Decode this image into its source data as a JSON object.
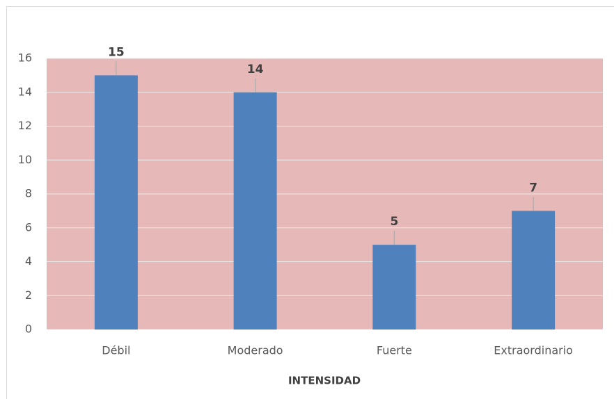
{
  "chart_data": {
    "type": "bar",
    "x_label": "INTENSIDAD",
    "categories": [
      "Débil",
      "Moderado",
      "Fuerte",
      "Extraordinario"
    ],
    "values": [
      15,
      14,
      5,
      7
    ],
    "color": "#4f81bd",
    "plot_background": "#e6b9b8",
    "ylim": [
      0,
      16
    ],
    "yticks": [
      0,
      2,
      4,
      6,
      8,
      10,
      12,
      14,
      16
    ],
    "grid": true
  }
}
